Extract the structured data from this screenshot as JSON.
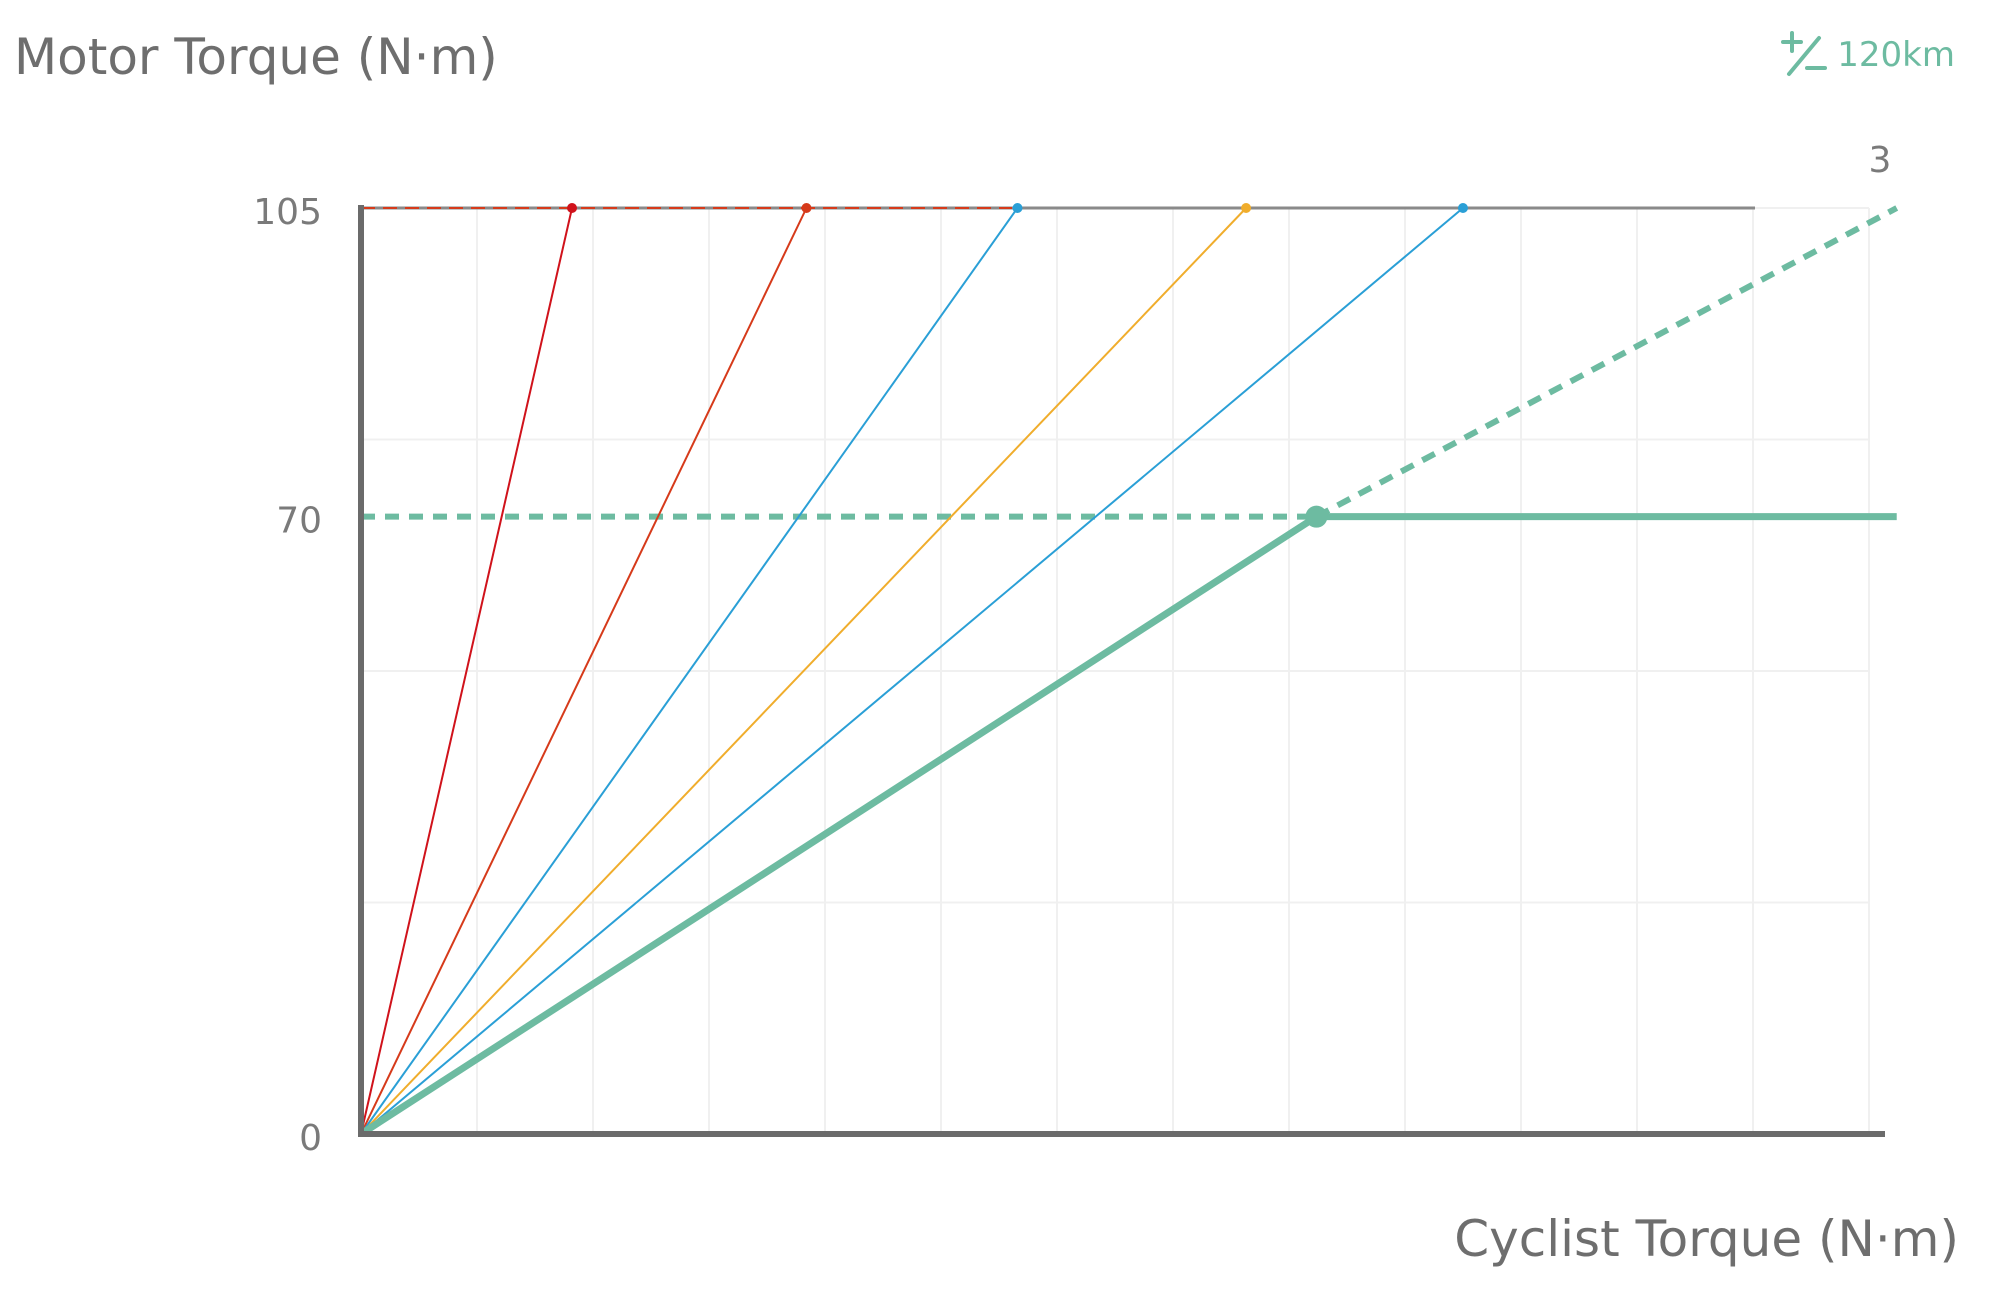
{
  "header": {
    "y_axis_title": "Motor Torque (N·m)",
    "range_label": "120km",
    "range_icon": "plus-minus-icon"
  },
  "footer": {
    "x_axis_title": "Cyclist Torque (N·m)"
  },
  "chart_data": {
    "type": "line",
    "title": "",
    "xlabel": "Cyclist Torque (N·m)",
    "ylabel": "Motor Torque (N·m)",
    "ylim": [
      0,
      105
    ],
    "xlim": [
      0,
      13
    ],
    "y_ticks": [
      0,
      70,
      105
    ],
    "grid": true,
    "end_label": "3",
    "max_torque": 105,
    "active_limit": 70,
    "series": [
      {
        "color": "#d0121b",
        "points": [
          [
            0,
            0
          ],
          [
            1.8,
            105
          ]
        ]
      },
      {
        "color": "#d63a1a",
        "points": [
          [
            0,
            0
          ],
          [
            3.8,
            105
          ]
        ]
      },
      {
        "color": "#2a9fd6",
        "points": [
          [
            0,
            0
          ],
          [
            5.6,
            105
          ]
        ]
      },
      {
        "color": "#f0ad2c",
        "points": [
          [
            0,
            0
          ],
          [
            7.55,
            105
          ]
        ]
      },
      {
        "color": "#2a9fd6",
        "points": [
          [
            0,
            0
          ],
          [
            9.4,
            105
          ]
        ]
      },
      {
        "color": "#6dbba1",
        "points": [
          [
            0,
            0
          ],
          [
            8.15,
            70
          ],
          [
            13.1,
            70
          ]
        ]
      }
    ],
    "active_extension": [
      [
        8.15,
        70
      ],
      [
        13.1,
        105
      ]
    ],
    "active_point": [
      8.15,
      70
    ]
  }
}
